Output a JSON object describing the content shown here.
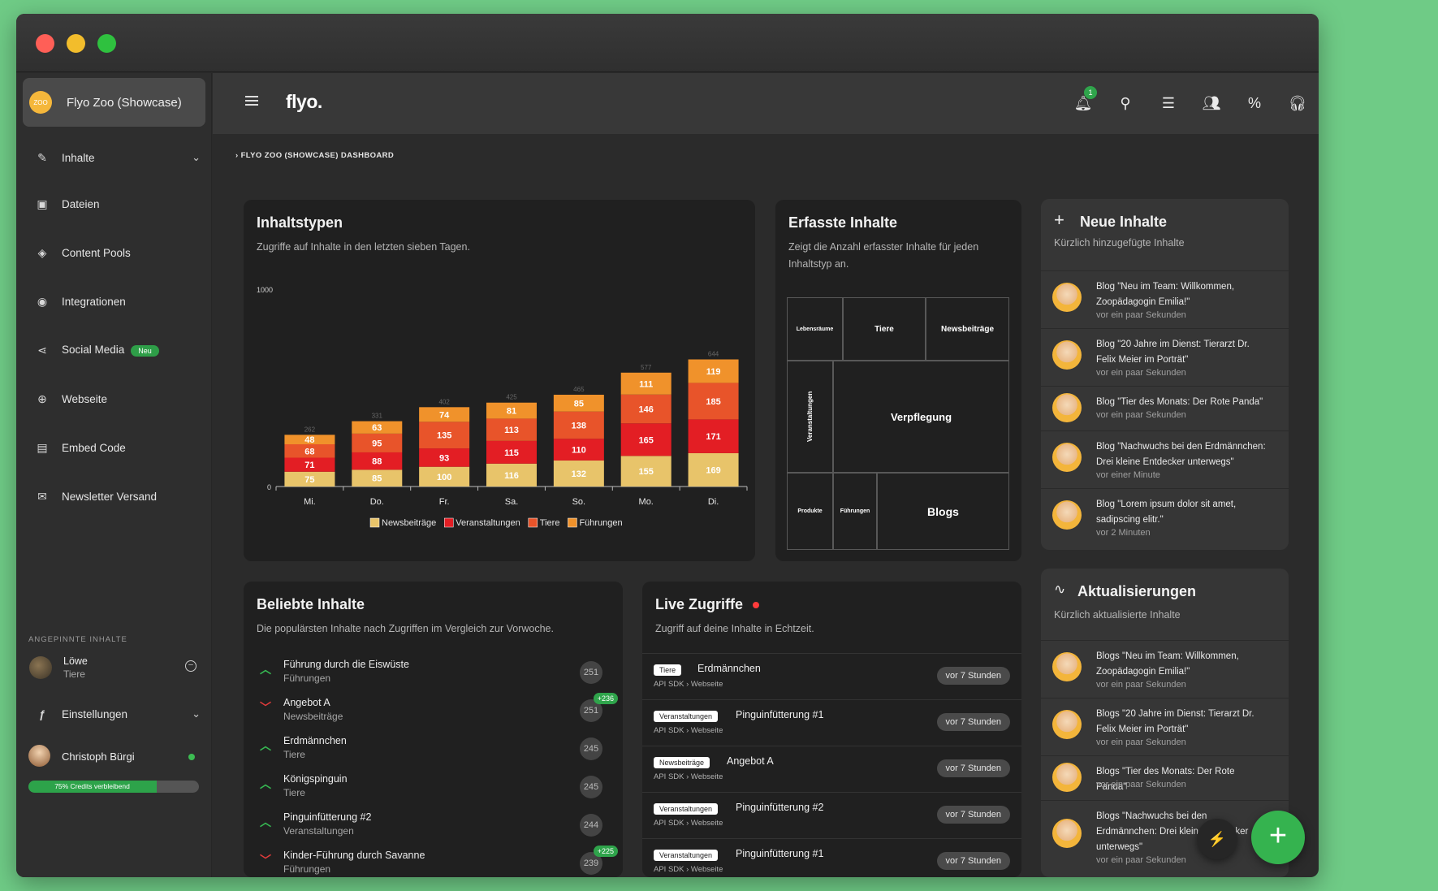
{
  "org": {
    "name": "Flyo Zoo (Showcase)",
    "logo_text": "ZOO"
  },
  "nav": [
    {
      "label": "Inhalte",
      "icon": "pencil-icon"
    },
    {
      "label": "Dateien",
      "icon": "images-icon"
    },
    {
      "label": "Content Pools",
      "icon": "layers-icon"
    },
    {
      "label": "Integrationen",
      "icon": "integration-icon"
    },
    {
      "label": "Social Media",
      "icon": "share-icon",
      "badge": "Neu"
    },
    {
      "label": "Webseite",
      "icon": "globe-icon"
    },
    {
      "label": "Embed Code",
      "icon": "clipboard-icon"
    },
    {
      "label": "Newsletter Versand",
      "icon": "mail-icon"
    }
  ],
  "pinned": {
    "title": "ANGEPINNTE INHALTE",
    "name": "Löwe",
    "type": "Tiere"
  },
  "settings_label": "Einstellungen",
  "user": {
    "name": "Christoph Bürgi"
  },
  "credits": {
    "label": "75% Credits verbleibend",
    "fraction": 0.75
  },
  "header": {
    "brand": "flyo.",
    "notification_count": "1"
  },
  "breadcrumb": "FLYO ZOO (SHOWCASE) DASHBOARD",
  "inhaltstypen": {
    "title": "Inhaltstypen",
    "subtitle": "Zugriffe auf Inhalte in den letzten sieben Tagen."
  },
  "chart_data": {
    "type": "bar",
    "stacked": true,
    "categories": [
      "Mi.",
      "Do.",
      "Fr.",
      "Sa.",
      "So.",
      "Mo.",
      "Di."
    ],
    "totals": [
      262,
      331,
      402,
      425,
      465,
      577,
      644
    ],
    "series": [
      {
        "name": "Newsbeiträge",
        "color": "#e8c46a",
        "values": [
          75,
          85,
          100,
          116,
          132,
          155,
          169
        ]
      },
      {
        "name": "Veranstaltungen",
        "color": "#e31e24",
        "values": [
          71,
          88,
          93,
          115,
          110,
          165,
          171
        ]
      },
      {
        "name": "Tiere",
        "color": "#e8542a",
        "values": [
          68,
          95,
          135,
          113,
          138,
          146,
          185
        ]
      },
      {
        "name": "Führungen",
        "color": "#f0922b",
        "values": [
          48,
          63,
          74,
          81,
          85,
          111,
          119
        ]
      }
    ],
    "ylim": [
      0,
      1000
    ],
    "yticks": [
      "0",
      "1000"
    ],
    "legend": "bottom"
  },
  "erfasste": {
    "title": "Erfasste Inhalte",
    "subtitle": "Zeigt die Anzahl erfasster Inhalte für jeden Inhaltstyp an.",
    "treemap": [
      {
        "label": "Lebensräume",
        "color": "#f9cc6a"
      },
      {
        "label": "Tiere",
        "color": "#ea1d24"
      },
      {
        "label": "Newsbeiträge",
        "color": "#f05a28"
      },
      {
        "label": "Veranstaltungen",
        "color": "#f7941d"
      },
      {
        "label": "Verpflegung",
        "color": "#ffff00"
      },
      {
        "label": "Produkte",
        "color": "#fcb814"
      },
      {
        "label": "Führungen",
        "color": "#d6e43a"
      },
      {
        "label": "Blogs",
        "color": "#8dc63f"
      }
    ]
  },
  "neue": {
    "title": "Neue Inhalte",
    "subtitle": "Kürzlich hinzugefügte Inhalte",
    "items": [
      {
        "title": "Blog \"Neu im Team: Willkommen, Zoopädagogin Emilia!\"",
        "time": "vor ein paar Sekunden"
      },
      {
        "title": "Blog \"20 Jahre im Dienst: Tierarzt Dr. Felix Meier im Porträt\"",
        "time": "vor ein paar Sekunden"
      },
      {
        "title": "Blog \"Tier des Monats: Der Rote Panda\"",
        "time": "vor ein paar Sekunden"
      },
      {
        "title": "Blog \"Nachwuchs bei den Erdmännchen: Drei kleine Entdecker unterwegs\"",
        "time": "vor einer Minute"
      },
      {
        "title": "Blog \"Lorem ipsum dolor sit amet, sadipscing elitr.\"",
        "time": "vor 2 Minuten"
      }
    ]
  },
  "beliebte": {
    "title": "Beliebte Inhalte",
    "subtitle": "Die populärsten Inhalte nach Zugriffen im Vergleich zur Vorwoche.",
    "items": [
      {
        "name": "Führung durch die Eiswüste",
        "type": "Führungen",
        "count": "251",
        "trend": "up",
        "plus": ""
      },
      {
        "name": "Angebot A",
        "type": "Newsbeiträge",
        "count": "251",
        "trend": "down",
        "plus": "+236"
      },
      {
        "name": "Erdmännchen",
        "type": "Tiere",
        "count": "245",
        "trend": "up",
        "plus": ""
      },
      {
        "name": "Königspinguin",
        "type": "Tiere",
        "count": "245",
        "trend": "up",
        "plus": ""
      },
      {
        "name": "Pinguinfütterung #2",
        "type": "Veranstaltungen",
        "count": "244",
        "trend": "up",
        "plus": ""
      },
      {
        "name": "Kinder-Führung durch Savanne",
        "type": "Führungen",
        "count": "239",
        "trend": "down",
        "plus": "+225"
      }
    ]
  },
  "live": {
    "title": "Live Zugriffe",
    "subtitle": "Zugriff auf deine Inhalte in Echtzeit.",
    "items": [
      {
        "tag": "Tiere",
        "name": "Erdmännchen",
        "source": "API SDK  ›  Webseite",
        "time": "vor 7 Stunden"
      },
      {
        "tag": "Veranstaltungen",
        "name": "Pinguinfütterung #1",
        "source": "API SDK  ›  Webseite",
        "time": "vor 7 Stunden"
      },
      {
        "tag": "Newsbeiträge",
        "name": "Angebot A",
        "source": "API SDK  ›  Webseite",
        "time": "vor 7 Stunden"
      },
      {
        "tag": "Veranstaltungen",
        "name": "Pinguinfütterung #2",
        "source": "API SDK  ›  Webseite",
        "time": "vor 7 Stunden"
      },
      {
        "tag": "Veranstaltungen",
        "name": "Pinguinfütterung #1",
        "source": "API SDK  ›  Webseite",
        "time": "vor 7 Stunden"
      }
    ]
  },
  "aktualisierungen": {
    "title": "Aktualisierungen",
    "subtitle": "Kürzlich aktualisierte Inhalte",
    "items": [
      {
        "title": "Blogs \"Neu im Team: Willkommen, Zoopädagogin Emilia!\"",
        "time": "vor ein paar Sekunden"
      },
      {
        "title": "Blogs \"20 Jahre im Dienst: Tierarzt Dr. Felix Meier im Porträt\"",
        "time": "vor ein paar Sekunden"
      },
      {
        "title": "Blogs \"Tier des Monats: Der Rote Panda\"",
        "time": "vor ein paar Sekunden"
      },
      {
        "title": "Blogs \"Nachwuchs bei den Erdmännchen: Drei kleine Entdecker unterwegs\"",
        "time": "vor ein paar Sekunden"
      }
    ]
  },
  "fab": {
    "label": "+",
    "secondary": "⚡"
  }
}
